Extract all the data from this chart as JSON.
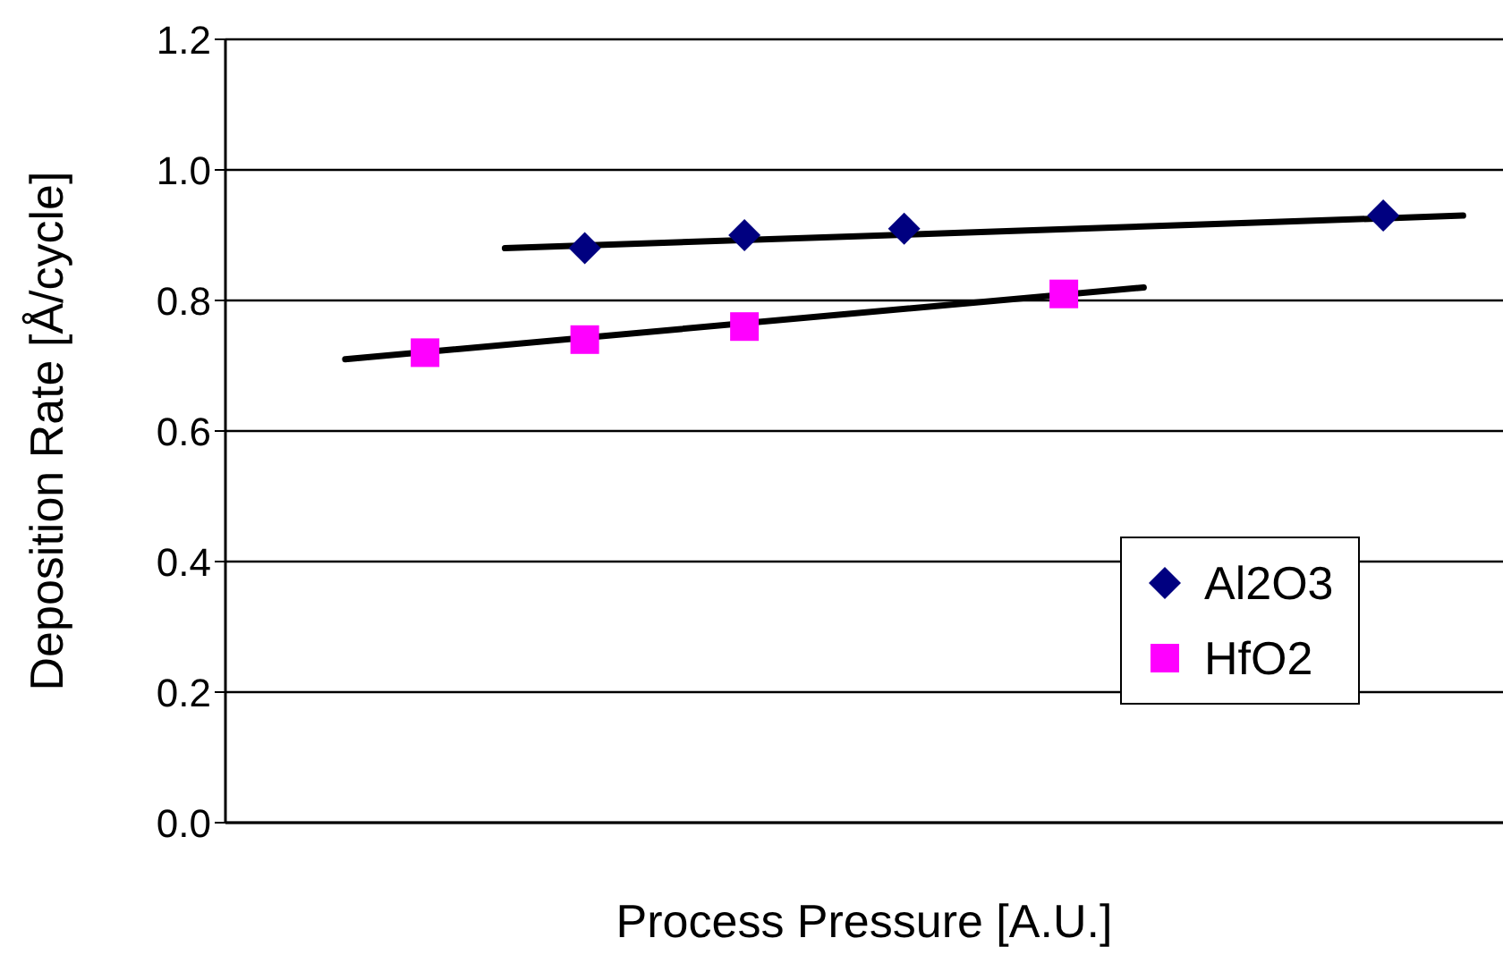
{
  "chart_data": {
    "type": "scatter",
    "xlabel": "Process Pressure [A.U.]",
    "ylabel": "Deposition Rate [Å/cycle]",
    "categories": [
      null,
      null,
      null,
      null,
      null,
      null,
      null,
      null,
      null,
      null,
      null,
      null,
      null,
      null,
      null,
      null
    ],
    "tick_labels": "y",
    "ylim": [
      0,
      1.2
    ],
    "yticks": [
      {
        "value": 0,
        "label": "0.0"
      },
      {
        "value": 0.2,
        "label": "0.2"
      },
      {
        "value": 0.4,
        "label": "0.4"
      },
      {
        "value": 0.6,
        "label": "0.6"
      },
      {
        "value": 0.8,
        "label": "0.8"
      },
      {
        "value": 1,
        "label": "1.0"
      },
      {
        "value": 1.2,
        "label": "1.2"
      }
    ],
    "grid": "y",
    "legend": "right",
    "series": [
      {
        "name": "Al2O3",
        "marker": "diamond",
        "color": "#000080",
        "values": [
          null,
          null,
          null,
          null,
          0.88,
          null,
          0.9,
          null,
          0.91,
          null,
          null,
          null,
          null,
          null,
          0.93,
          null
        ]
      },
      {
        "name": "HfO2",
        "marker": "square",
        "color": "#ff00ff",
        "values": [
          null,
          null,
          0.72,
          null,
          0.74,
          null,
          0.76,
          null,
          null,
          null,
          0.81,
          null,
          null,
          null,
          null,
          null
        ]
      },
      {
        "type": "line",
        "marker": "none",
        "color": "#000000",
        "values": [
          null,
          null,
          null,
          0.88,
          null,
          null,
          null,
          null,
          null,
          null,
          null,
          null,
          null,
          null,
          null,
          0.93
        ]
      },
      {
        "type": "line",
        "marker": "none",
        "color": "#000000",
        "values": [
          null,
          0.71,
          null,
          null,
          null,
          null,
          null,
          null,
          null,
          null,
          null,
          0.82,
          null,
          null,
          null,
          null
        ]
      }
    ]
  }
}
